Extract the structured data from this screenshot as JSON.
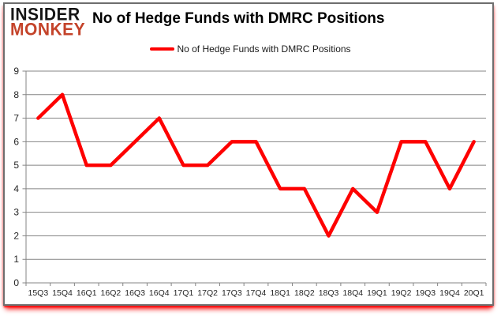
{
  "logo": {
    "line1": "INSIDER",
    "line2": "MONKEY"
  },
  "title": "No of Hedge Funds with DMRC Positions",
  "legend": {
    "label": "No of Hedge Funds with DMRC Positions"
  },
  "colors": {
    "line": "#fe0000",
    "logo_primary": "#151515",
    "logo_accent": "#c4432a",
    "grid": "#848484",
    "axis_text": "#262626",
    "bottom_glow": "#fa0a0a"
  },
  "chart_data": {
    "type": "line",
    "title": "No of Hedge Funds with DMRC Positions",
    "categories": [
      "15Q3",
      "15Q4",
      "16Q1",
      "16Q2",
      "16Q3",
      "16Q4",
      "17Q1",
      "17Q2",
      "17Q3",
      "17Q4",
      "18Q1",
      "18Q2",
      "18Q3",
      "18Q4",
      "19Q1",
      "19Q2",
      "19Q3",
      "19Q4",
      "20Q1"
    ],
    "series": [
      {
        "name": "No of Hedge Funds with DMRC Positions",
        "color": "#fe0000",
        "values": [
          7,
          8,
          5,
          5,
          6,
          7,
          5,
          5,
          6,
          6,
          4,
          4,
          2,
          4,
          3,
          6,
          6,
          4,
          6
        ]
      }
    ],
    "xlabel": "",
    "ylabel": "",
    "ylim": [
      0,
      9
    ],
    "ytick_step": 1,
    "grid": true,
    "legend_position": "top-center"
  }
}
